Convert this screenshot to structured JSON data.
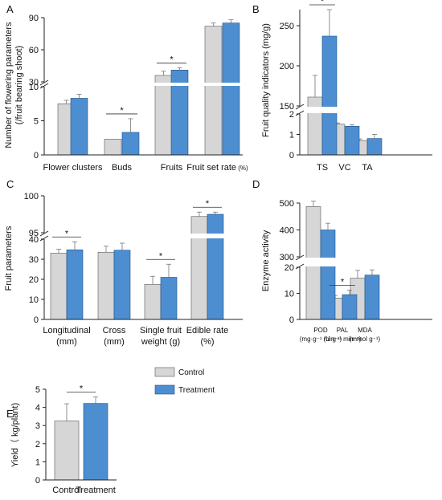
{
  "colors": {
    "control": "#d6d6d6",
    "treatment": "#4d8ed1"
  },
  "legend": {
    "placement": "right-of-panel-E",
    "items": [
      {
        "label": "Control",
        "color": "#d6d6d6"
      },
      {
        "label": "Treatment",
        "color": "#4d8ed1"
      }
    ]
  },
  "chart_data": [
    {
      "id": "A",
      "type": "bar",
      "letter": "A",
      "ylabel": [
        "Number of flowering parameters",
        "(/fruit bearing shoot)"
      ],
      "categories": [
        {
          "label": "Flower clusters",
          "unit": ""
        },
        {
          "label": "Buds",
          "unit": ""
        },
        {
          "label": "Fruits",
          "unit": ""
        },
        {
          "label": "Fruit set rate",
          "unit": " (%)"
        }
      ],
      "series": [
        {
          "name": "Control",
          "values": [
            7.5,
            2.3,
            36,
            82
          ],
          "errors": [
            0.5,
            0,
            4,
            3
          ]
        },
        {
          "name": "Treatment",
          "values": [
            8.3,
            3.3,
            41,
            85
          ],
          "errors": [
            0.6,
            2,
            2,
            3
          ]
        }
      ],
      "significance": [
        {
          "category": 1,
          "label": "*"
        },
        {
          "category": 2,
          "label": "*"
        }
      ],
      "broken_axis": {
        "lower": [
          0,
          10
        ],
        "upper": [
          30,
          90
        ]
      },
      "yticks_lower": [
        0,
        5,
        10
      ],
      "yticks_upper": [
        30,
        60,
        90
      ]
    },
    {
      "id": "B",
      "type": "bar",
      "letter": "B",
      "ylabel": [
        "Fruit quality indicators (mg/g)"
      ],
      "categories": [
        {
          "label": "TS",
          "unit": ""
        },
        {
          "label": "VC",
          "unit": ""
        },
        {
          "label": "TA",
          "unit": ""
        }
      ],
      "series": [
        {
          "name": "Control",
          "values": [
            161,
            1.5,
            0.7
          ],
          "errors": [
            27,
            0.06,
            0.08
          ]
        },
        {
          "name": "Treatment",
          "values": [
            237,
            1.4,
            0.8
          ],
          "errors": [
            33,
            0.08,
            0.2
          ]
        }
      ],
      "significance": [
        {
          "category": 0,
          "label": "*"
        }
      ],
      "broken_axis": {
        "lower": [
          0,
          2
        ],
        "upper": [
          150,
          270
        ]
      },
      "yticks_lower": [
        0,
        1,
        2
      ],
      "yticks_upper": [
        150,
        200,
        250
      ]
    },
    {
      "id": "C",
      "type": "bar",
      "letter": "C",
      "ylabel": [
        "Fruit parameters"
      ],
      "categories": [
        {
          "label": "Longitudinal",
          "unit": "(mm)"
        },
        {
          "label": "Cross",
          "unit": "(mm)"
        },
        {
          "label": "Single fruit",
          "unit": "weight (g)"
        },
        {
          "label": "Edible rate",
          "unit": "(%)"
        }
      ],
      "series": [
        {
          "name": "Control",
          "values": [
            33,
            33.5,
            17.5,
            97.2
          ],
          "errors": [
            2,
            3,
            4,
            0.6
          ]
        },
        {
          "name": "Treatment",
          "values": [
            34.7,
            34.5,
            21,
            97.5
          ],
          "errors": [
            4,
            3.5,
            6.5,
            0.3
          ]
        }
      ],
      "significance": [
        {
          "category": 0,
          "label": "*"
        },
        {
          "category": 2,
          "label": "*"
        },
        {
          "category": 3,
          "label": "*"
        }
      ],
      "broken_axis": {
        "lower": [
          0,
          40
        ],
        "upper": [
          95,
          100
        ]
      },
      "yticks_lower": [
        0,
        10,
        20,
        30,
        40
      ],
      "yticks_upper": [
        95,
        100
      ]
    },
    {
      "id": "D",
      "type": "bar",
      "letter": "D",
      "ylabel": [
        "Enzyme activity"
      ],
      "categories": [
        {
          "label": "POD",
          "unit": "(mg·g⁻¹ min⁻¹)"
        },
        {
          "label": "PAL",
          "unit": "(U·g⁻¹ min⁻¹)"
        },
        {
          "label": "MDA",
          "unit": "(mmol g⁻¹)"
        }
      ],
      "series": [
        {
          "name": "Control",
          "values": [
            487,
            8.2,
            15.8
          ],
          "errors": [
            20,
            1,
            3
          ]
        },
        {
          "name": "Treatment",
          "values": [
            400,
            9.5,
            17
          ],
          "errors": [
            25,
            1.7,
            2
          ]
        }
      ],
      "significance": [
        {
          "category": 1,
          "label": "*"
        }
      ],
      "broken_axis": {
        "lower": [
          0,
          20
        ],
        "upper": [
          300,
          500
        ]
      },
      "yticks_lower": [
        0,
        10,
        20
      ],
      "yticks_upper": [
        300,
        400,
        500
      ]
    },
    {
      "id": "E",
      "type": "bar",
      "letter": "E",
      "ylabel": [
        "Yield（ kg/plant)"
      ],
      "categories": [
        {
          "label": "Control",
          "unit": ""
        },
        {
          "label": "Treatment",
          "unit": ""
        }
      ],
      "series": [
        {
          "name": "",
          "values": [
            3.25,
            4.22
          ],
          "errors": [
            0.95,
            0.35
          ]
        }
      ],
      "significance": [
        {
          "pair": [
            0,
            1
          ],
          "label": "*"
        }
      ],
      "ylim": [
        0,
        5
      ],
      "yticks": [
        0,
        1,
        2,
        3,
        4,
        5
      ]
    }
  ]
}
